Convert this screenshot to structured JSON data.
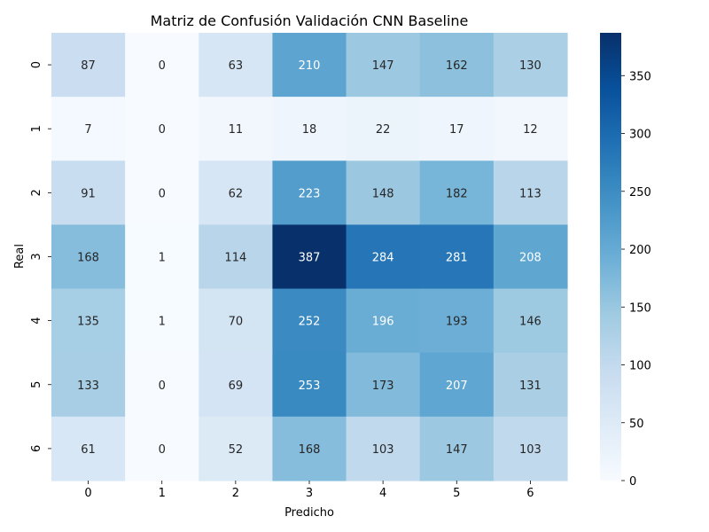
{
  "chart_data": {
    "type": "heatmap",
    "title": "Matriz de Confusión Validación CNN Baseline",
    "xlabel": "Predicho",
    "ylabel": "Real",
    "x_categories": [
      "0",
      "1",
      "2",
      "3",
      "4",
      "5",
      "6"
    ],
    "y_categories": [
      "0",
      "1",
      "2",
      "3",
      "4",
      "5",
      "6"
    ],
    "values": [
      [
        87,
        0,
        63,
        210,
        147,
        162,
        130
      ],
      [
        7,
        0,
        11,
        18,
        22,
        17,
        12
      ],
      [
        91,
        0,
        62,
        223,
        148,
        182,
        113
      ],
      [
        168,
        1,
        114,
        387,
        284,
        281,
        208
      ],
      [
        135,
        1,
        70,
        252,
        196,
        193,
        146
      ],
      [
        133,
        0,
        69,
        253,
        173,
        207,
        131
      ],
      [
        61,
        0,
        52,
        168,
        103,
        147,
        103
      ]
    ],
    "colorbar": {
      "min": 0,
      "max": 387,
      "ticks": [
        0,
        50,
        100,
        150,
        200,
        250,
        300,
        350
      ],
      "colormap": "Blues"
    },
    "grid": false
  }
}
